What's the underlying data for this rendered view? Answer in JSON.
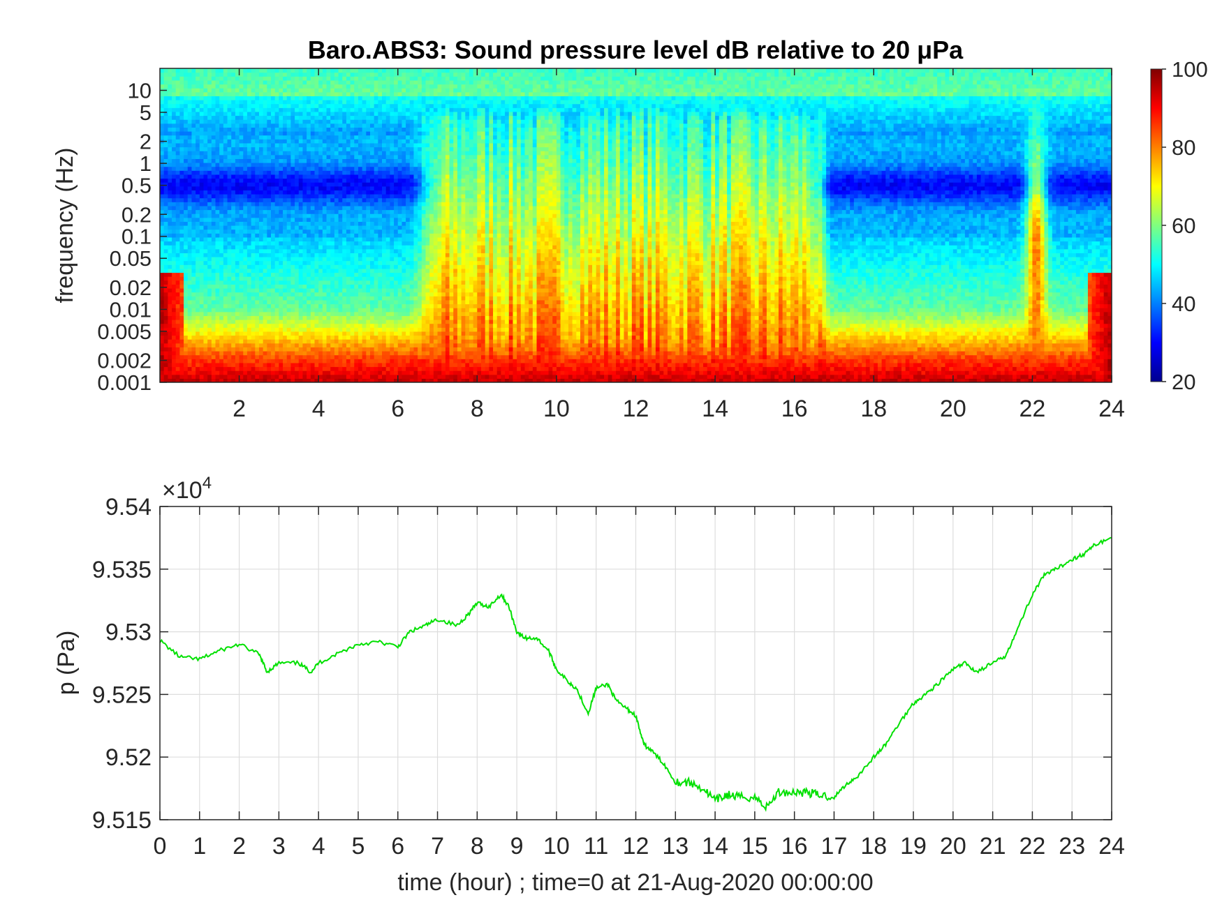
{
  "chart_data": [
    {
      "type": "heatmap",
      "title": "Baro.ABS3: Sound pressure level dB relative to 20 μPa",
      "ylabel": "frequency (Hz)",
      "xlabel": "",
      "x_ticks": [
        2,
        4,
        6,
        8,
        10,
        12,
        14,
        16,
        18,
        20,
        22,
        24
      ],
      "y_ticks": [
        10,
        5,
        2,
        1,
        0.5,
        0.2,
        0.1,
        0.05,
        0.02,
        0.01,
        0.005,
        0.002,
        0.001
      ],
      "y_scale": "log",
      "xlim": [
        0,
        24
      ],
      "ylim": [
        0.001,
        20
      ],
      "colormap": "jet",
      "colorbar": {
        "ticks": [
          100,
          80,
          60,
          40,
          20
        ],
        "range": [
          20,
          100
        ]
      },
      "description": "Low frequencies (<0.005 Hz) ~85-100 dB throughout; broadband elevated levels 60-90 dB between hours 6.5 and 16.8 up to ~5 Hz; quiet bands 25-45 dB at 0.2-2 Hz outside this window; short burst near hour 22"
    },
    {
      "type": "line",
      "ylabel": "p (Pa)",
      "xlabel": "time (hour) ; time=0 at 21-Aug-2020 00:00:00",
      "exponent_label": "×10",
      "exponent_power": "4",
      "x_ticks": [
        0,
        1,
        2,
        3,
        4,
        5,
        6,
        7,
        8,
        9,
        10,
        11,
        12,
        13,
        14,
        15,
        16,
        17,
        18,
        19,
        20,
        21,
        22,
        23,
        24
      ],
      "y_ticks": [
        "9.54",
        "9.535",
        "9.53",
        "9.525",
        "9.52",
        "9.515"
      ],
      "xlim": [
        0,
        24
      ],
      "ylim": [
        95150,
        95400
      ],
      "grid": true,
      "color": "#00e000",
      "series": [
        {
          "x": [
            0,
            0.5,
            1,
            1.5,
            2,
            2.5,
            2.7,
            3,
            3.5,
            3.8,
            4,
            4.5,
            5,
            5.5,
            6,
            6.3,
            6.7,
            7,
            7.5,
            7.8,
            8,
            8.3,
            8.6,
            8.8,
            9,
            9.2,
            9.5,
            9.8,
            10,
            10.3,
            10.5,
            10.8,
            11,
            11.3,
            11.5,
            11.8,
            12,
            12.2,
            12.4,
            12.7,
            13,
            13.3,
            13.7,
            14,
            14.3,
            14.6,
            15,
            15.3,
            15.6,
            16,
            16.3,
            16.6,
            17,
            17.3,
            17.6,
            18,
            18.3,
            18.6,
            19,
            19.3,
            19.6,
            20,
            20.3,
            20.6,
            21,
            21.3,
            21.6,
            22,
            22.3,
            22.6,
            23,
            23.3,
            23.6,
            24
          ],
          "y": [
            95293,
            95280,
            95278,
            95285,
            95290,
            95282,
            95268,
            95275,
            95275,
            95268,
            95275,
            95283,
            95290,
            95292,
            95288,
            95300,
            95305,
            95310,
            95305,
            95315,
            95323,
            95320,
            95330,
            95320,
            95300,
            95295,
            95295,
            95285,
            95270,
            95260,
            95255,
            95235,
            95255,
            95258,
            95245,
            95238,
            95233,
            95210,
            95205,
            95195,
            95180,
            95180,
            95175,
            95165,
            95170,
            95168,
            95168,
            95160,
            95172,
            95172,
            95172,
            95170,
            95168,
            95178,
            95185,
            95200,
            95210,
            95225,
            95243,
            95250,
            95258,
            95270,
            95275,
            95268,
            95275,
            95280,
            95300,
            95330,
            95345,
            95350,
            95358,
            95362,
            95370,
            95375
          ]
        }
      ]
    }
  ]
}
